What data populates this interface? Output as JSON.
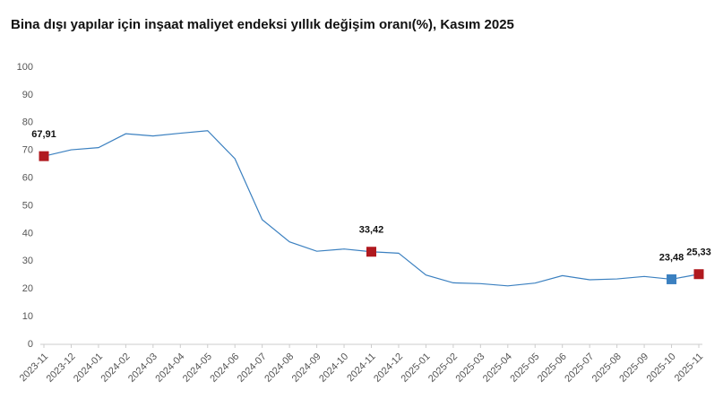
{
  "chart_data": {
    "type": "line",
    "title": "Bina dışı yapılar için inşaat maliyet endeksi yıllık değişim oranı(%), Kasım 2025",
    "categories": [
      "2023-11",
      "2023-12",
      "2024-01",
      "2024-02",
      "2024-03",
      "2024-04",
      "2024-05",
      "2024-06",
      "2024-07",
      "2024-08",
      "2024-09",
      "2024-10",
      "2024-11",
      "2024-12",
      "2025-01",
      "2025-02",
      "2025-03",
      "2025-04",
      "2025-05",
      "2025-06",
      "2025-07",
      "2025-08",
      "2025-09",
      "2025-10",
      "2025-11"
    ],
    "values": [
      67.91,
      70.2,
      71,
      76,
      75.2,
      76.2,
      77.1,
      67,
      45,
      37,
      33.6,
      34.4,
      33.42,
      32.9,
      25,
      22.2,
      21.9,
      21.1,
      22.1,
      24.8,
      23.3,
      23.6,
      24.5,
      23.48,
      25.33
    ],
    "value_labels": [
      "67,91",
      null,
      null,
      null,
      null,
      null,
      null,
      null,
      null,
      null,
      null,
      null,
      "33,42",
      null,
      null,
      null,
      null,
      null,
      null,
      null,
      null,
      null,
      null,
      "23,48",
      "25,33"
    ],
    "marker_colors": [
      "#b0191f",
      null,
      null,
      null,
      null,
      null,
      null,
      null,
      null,
      null,
      null,
      null,
      "#b0191f",
      null,
      null,
      null,
      null,
      null,
      null,
      null,
      null,
      null,
      null,
      "#3b80c0",
      "#b0191f"
    ],
    "color": "#3b80c0",
    "ylim": [
      0,
      100
    ],
    "yticks": [
      0,
      10,
      20,
      30,
      40,
      50,
      60,
      70,
      80,
      90,
      100
    ],
    "grid": false
  }
}
